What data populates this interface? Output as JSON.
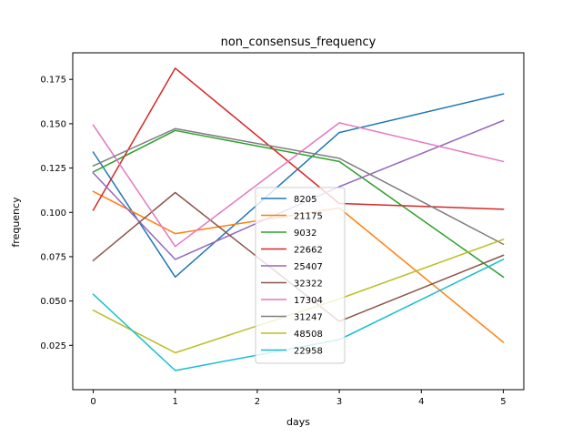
{
  "chart_data": {
    "type": "line",
    "title": "non_consensus_frequency",
    "xlabel": "days",
    "ylabel": "frequency",
    "x": [
      0,
      1,
      2,
      3,
      4,
      5
    ],
    "xlim": [
      -0.25,
      5.25
    ],
    "ylim": [
      0.0,
      0.19
    ],
    "xticks": [
      0,
      1,
      2,
      3,
      4,
      5
    ],
    "yticks": [
      0.025,
      0.05,
      0.075,
      0.1,
      0.125,
      0.15,
      0.175
    ],
    "ytick_labels": [
      "0.025",
      "0.050",
      "0.075",
      "0.100",
      "0.125",
      "0.150",
      "0.175"
    ],
    "grid": false,
    "legend_position": "center",
    "series": [
      {
        "name": "8205",
        "color": "#1f77b4",
        "x": [
          0,
          1,
          3,
          5
        ],
        "values": [
          0.134,
          0.0635,
          0.145,
          0.1668
        ]
      },
      {
        "name": "21175",
        "color": "#ff7f0e",
        "x": [
          0,
          1,
          3,
          5
        ],
        "values": [
          0.1118,
          0.088,
          0.1025,
          0.0267
        ]
      },
      {
        "name": "9032",
        "color": "#2ca02c",
        "x": [
          0,
          1,
          3,
          5
        ],
        "values": [
          0.1228,
          0.1462,
          0.1287,
          0.0635
        ]
      },
      {
        "name": "22662",
        "color": "#d62728",
        "x": [
          0,
          1,
          3,
          5
        ],
        "values": [
          0.1012,
          0.1813,
          0.105,
          0.1018
        ]
      },
      {
        "name": "25407",
        "color": "#9467bd",
        "x": [
          0,
          1,
          3,
          5
        ],
        "values": [
          0.1222,
          0.0735,
          0.1145,
          0.1518
        ]
      },
      {
        "name": "32322",
        "color": "#8c564b",
        "x": [
          0,
          1,
          3,
          5
        ],
        "values": [
          0.0728,
          0.1112,
          0.0385,
          0.0758
        ]
      },
      {
        "name": "17304",
        "color": "#e377c2",
        "x": [
          0,
          1,
          3,
          5
        ],
        "values": [
          0.1493,
          0.0808,
          0.1505,
          0.1287
        ]
      },
      {
        "name": "31247",
        "color": "#7f7f7f",
        "x": [
          0,
          1,
          3,
          5
        ],
        "values": [
          0.1262,
          0.1472,
          0.1305,
          0.082
        ]
      },
      {
        "name": "48508",
        "color": "#bcbd22",
        "x": [
          0,
          1,
          3,
          5
        ],
        "values": [
          0.0448,
          0.0208,
          0.0512,
          0.0848
        ]
      },
      {
        "name": "22958",
        "color": "#17becf",
        "x": [
          0,
          1,
          3,
          5
        ],
        "values": [
          0.0538,
          0.0108,
          0.0282,
          0.0735
        ]
      }
    ]
  }
}
